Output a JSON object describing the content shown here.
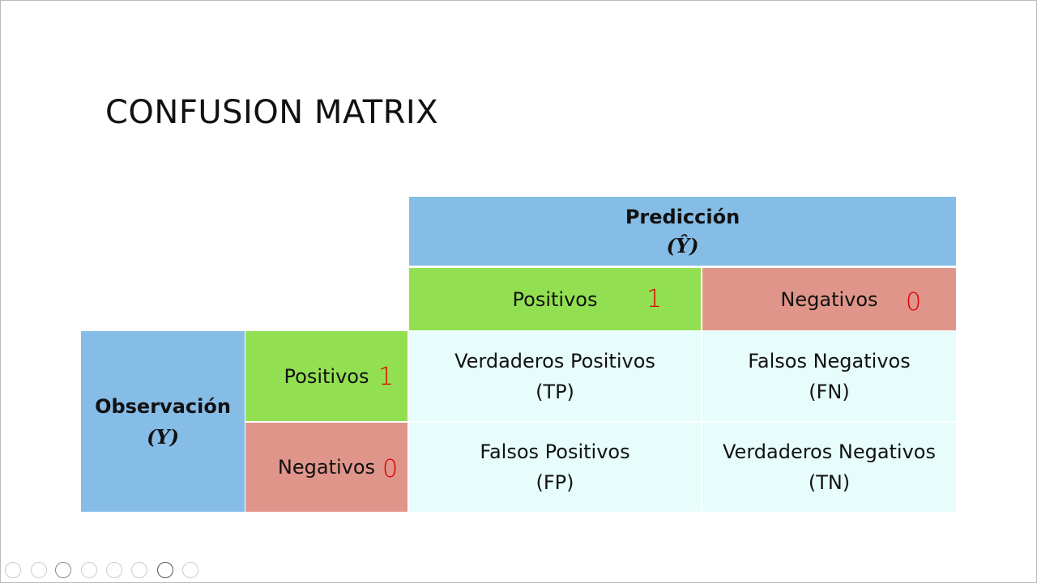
{
  "title": "CONFUSION MATRIX",
  "matrix": {
    "prediction": {
      "label": "Predicción",
      "symbol": "(Ŷ)"
    },
    "observation": {
      "label": "Observación",
      "symbol": "(Y)"
    },
    "columns": [
      {
        "label": "Positivos",
        "mark": "1"
      },
      {
        "label": "Negativos",
        "mark": "0"
      }
    ],
    "rows": [
      {
        "label": "Positivos",
        "mark": "1"
      },
      {
        "label": "Negativos",
        "mark": "0"
      }
    ],
    "cells": [
      [
        {
          "name": "Verdaderos Positivos",
          "abbr": "(TP)"
        },
        {
          "name": "Falsos Negativos",
          "abbr": "(FN)"
        }
      ],
      [
        {
          "name": "Falsos Positivos",
          "abbr": "(FP)"
        },
        {
          "name": "Verdaderos Negativos",
          "abbr": "(TN)"
        }
      ]
    ]
  }
}
